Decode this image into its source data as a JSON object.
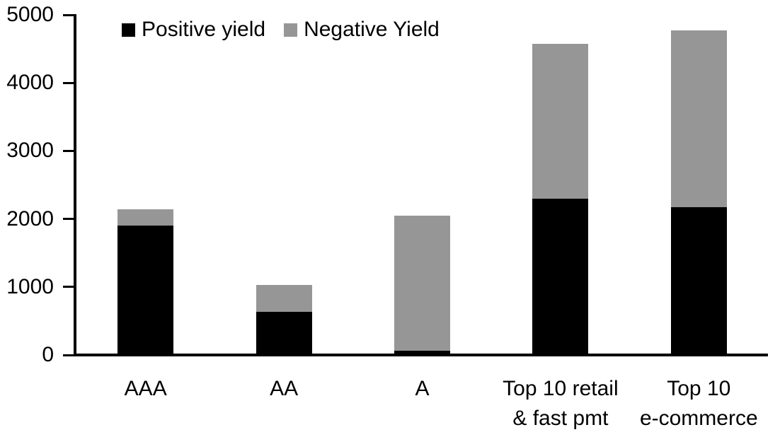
{
  "chart_data": {
    "type": "bar",
    "stacked": true,
    "title": "",
    "categories": [
      "AAA",
      "AA",
      "A",
      "Top 10 retail & fast pmt",
      "Top 10 e-commerce"
    ],
    "categories_display": [
      [
        "AAA"
      ],
      [
        "AA"
      ],
      [
        "A"
      ],
      [
        "Top 10 retail",
        "& fast pmt"
      ],
      [
        "Top 10",
        "e-commerce"
      ]
    ],
    "series": [
      {
        "name": "Positive yield",
        "color": "#000000",
        "values": [
          1880,
          615,
          40,
          2280,
          2150
        ]
      },
      {
        "name": "Negative Yield",
        "color": "#969696",
        "values": [
          240,
          390,
          1990,
          2270,
          2600
        ]
      }
    ],
    "totals": [
      2120,
      1005,
      2030,
      4550,
      4750
    ],
    "ylim": [
      0,
      5000
    ],
    "yticks": [
      0,
      1000,
      2000,
      3000,
      4000,
      5000
    ],
    "ylabel": "",
    "xlabel": "",
    "legend_position": "top",
    "grid": false,
    "axis_color": "#000000",
    "background_color": "#ffffff"
  }
}
